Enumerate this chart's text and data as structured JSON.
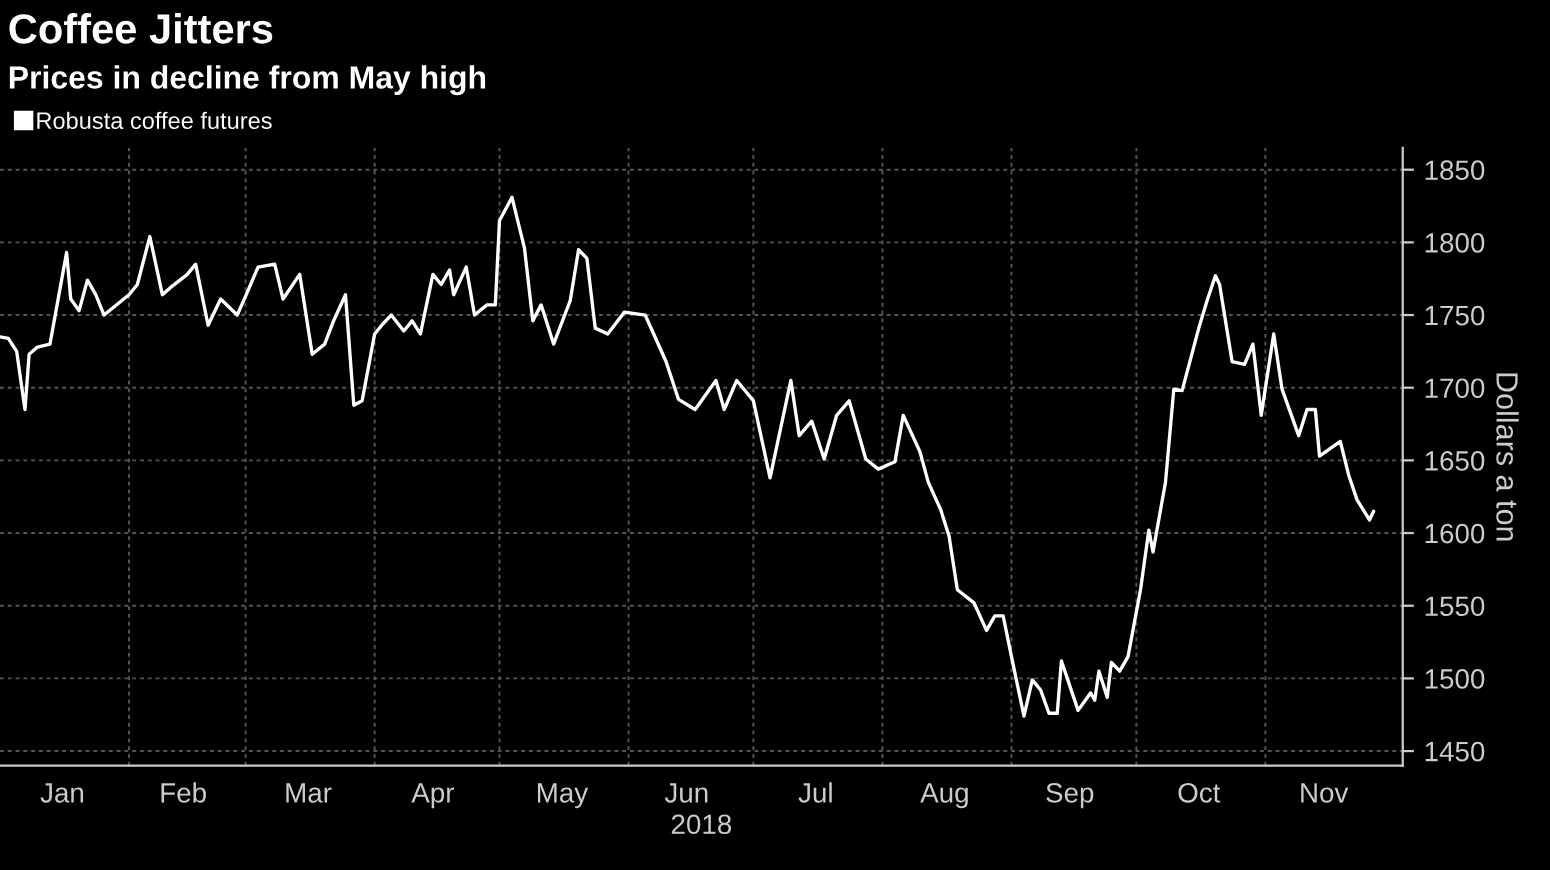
{
  "chart_data": {
    "type": "line",
    "title": "Coffee Jitters",
    "subtitle": "Prices in decline from May high",
    "xlabel": "2018",
    "ylabel": "Dollars a ton",
    "x": [
      "2018-01-01",
      "2018-01-03",
      "2018-01-05",
      "2018-01-07",
      "2018-01-08",
      "2018-01-10",
      "2018-01-13",
      "2018-01-17",
      "2018-01-18",
      "2018-01-20",
      "2018-01-22",
      "2018-01-24",
      "2018-01-26",
      "2018-02-01",
      "2018-02-03",
      "2018-02-06",
      "2018-02-09",
      "2018-02-11",
      "2018-02-15",
      "2018-02-17",
      "2018-02-20",
      "2018-02-23",
      "2018-02-27",
      "2018-03-01",
      "2018-03-04",
      "2018-03-08",
      "2018-03-10",
      "2018-03-14",
      "2018-03-17",
      "2018-03-20",
      "2018-03-22",
      "2018-03-25",
      "2018-03-27",
      "2018-03-29",
      "2018-04-01",
      "2018-04-03",
      "2018-04-05",
      "2018-04-08",
      "2018-04-10",
      "2018-04-12",
      "2018-04-15",
      "2018-04-17",
      "2018-04-19",
      "2018-04-20",
      "2018-04-23",
      "2018-04-25",
      "2018-04-28",
      "2018-04-30",
      "2018-05-01",
      "2018-05-04",
      "2018-05-07",
      "2018-05-09",
      "2018-05-11",
      "2018-05-14",
      "2018-05-18",
      "2018-05-20",
      "2018-05-22",
      "2018-05-24",
      "2018-05-27",
      "2018-05-31",
      "2018-06-05",
      "2018-06-10",
      "2018-06-13",
      "2018-06-17",
      "2018-06-22",
      "2018-06-24",
      "2018-06-27",
      "2018-07-01",
      "2018-07-05",
      "2018-07-10",
      "2018-07-12",
      "2018-07-15",
      "2018-07-18",
      "2018-07-21",
      "2018-07-24",
      "2018-07-28",
      "2018-07-31",
      "2018-08-04",
      "2018-08-06",
      "2018-08-10",
      "2018-08-12",
      "2018-08-15",
      "2018-08-17",
      "2018-08-19",
      "2018-08-23",
      "2018-08-26",
      "2018-08-28",
      "2018-08-30",
      "2018-09-01",
      "2018-09-04",
      "2018-09-06",
      "2018-09-08",
      "2018-09-10",
      "2018-09-12",
      "2018-09-13",
      "2018-09-17",
      "2018-09-20",
      "2018-09-21",
      "2018-09-22",
      "2018-09-24",
      "2018-09-25",
      "2018-09-27",
      "2018-09-29",
      "2018-10-02",
      "2018-10-04",
      "2018-10-05",
      "2018-10-08",
      "2018-10-10",
      "2018-10-12",
      "2018-10-16",
      "2018-10-18",
      "2018-10-20",
      "2018-10-21",
      "2018-10-24",
      "2018-10-27",
      "2018-10-29",
      "2018-10-31",
      "2018-11-03",
      "2018-11-05",
      "2018-11-09",
      "2018-11-11",
      "2018-11-13",
      "2018-11-14",
      "2018-11-19",
      "2018-11-21",
      "2018-11-23",
      "2018-11-26",
      "2018-11-27"
    ],
    "series": [
      {
        "name": "Robusta coffee futures",
        "color": "#ffffff",
        "values": [
          1735,
          1734,
          1725,
          1685,
          1723,
          1728,
          1730,
          1793,
          1761,
          1753,
          1774,
          1764,
          1750,
          1764,
          1771,
          1804,
          1764,
          1769,
          1778,
          1785,
          1743,
          1761,
          1750,
          1763,
          1783,
          1785,
          1761,
          1778,
          1723,
          1730,
          1745,
          1764,
          1688,
          1691,
          1737,
          1744,
          1750,
          1739,
          1746,
          1737,
          1778,
          1771,
          1781,
          1764,
          1783,
          1750,
          1757,
          1757,
          1815,
          1831,
          1796,
          1746,
          1757,
          1730,
          1760,
          1795,
          1789,
          1741,
          1737,
          1752,
          1750,
          1718,
          1692,
          1685,
          1705,
          1685,
          1705,
          1691,
          1638,
          1705,
          1667,
          1677,
          1651,
          1681,
          1691,
          1651,
          1644,
          1649,
          1681,
          1656,
          1635,
          1616,
          1598,
          1561,
          1552,
          1533,
          1543,
          1543,
          1515,
          1474,
          1499,
          1492,
          1476,
          1476,
          1512,
          1478,
          1490,
          1485,
          1505,
          1487,
          1511,
          1505,
          1515,
          1561,
          1602,
          1587,
          1635,
          1699,
          1698,
          1741,
          1760,
          1777,
          1771,
          1718,
          1716,
          1730,
          1681,
          1737,
          1699,
          1667,
          1685,
          1685,
          1653,
          1663,
          1640,
          1623,
          1609,
          1615
        ]
      }
    ],
    "xlim": [
      "2018-01-01",
      "2018-12-04"
    ],
    "xticks": [
      {
        "value": "2018-01-16",
        "label": "Jan"
      },
      {
        "value": "2018-02-01",
        "label": null
      },
      {
        "value": "2018-02-14",
        "label": "Feb"
      },
      {
        "value": "2018-03-01",
        "label": null
      },
      {
        "value": "2018-03-16",
        "label": "Mar"
      },
      {
        "value": "2018-04-01",
        "label": null
      },
      {
        "value": "2018-04-15",
        "label": "Apr"
      },
      {
        "value": "2018-05-01",
        "label": null
      },
      {
        "value": "2018-05-16",
        "label": "May"
      },
      {
        "value": "2018-06-01",
        "label": null
      },
      {
        "value": "2018-06-15",
        "label": "Jun"
      },
      {
        "value": "2018-07-01",
        "label": null
      },
      {
        "value": "2018-07-16",
        "label": "Jul"
      },
      {
        "value": "2018-08-01",
        "label": null
      },
      {
        "value": "2018-08-16",
        "label": "Aug"
      },
      {
        "value": "2018-09-01",
        "label": null
      },
      {
        "value": "2018-09-15",
        "label": "Sep"
      },
      {
        "value": "2018-10-01",
        "label": null
      },
      {
        "value": "2018-10-16",
        "label": "Oct"
      },
      {
        "value": "2018-11-01",
        "label": null
      },
      {
        "value": "2018-11-15",
        "label": "Nov"
      }
    ],
    "ylim": [
      1440,
      1865
    ],
    "yticks": [
      1450,
      1500,
      1550,
      1600,
      1650,
      1700,
      1750,
      1800,
      1850
    ],
    "grid": true,
    "legend": "top left",
    "marker": "none",
    "line_style": "solid"
  }
}
